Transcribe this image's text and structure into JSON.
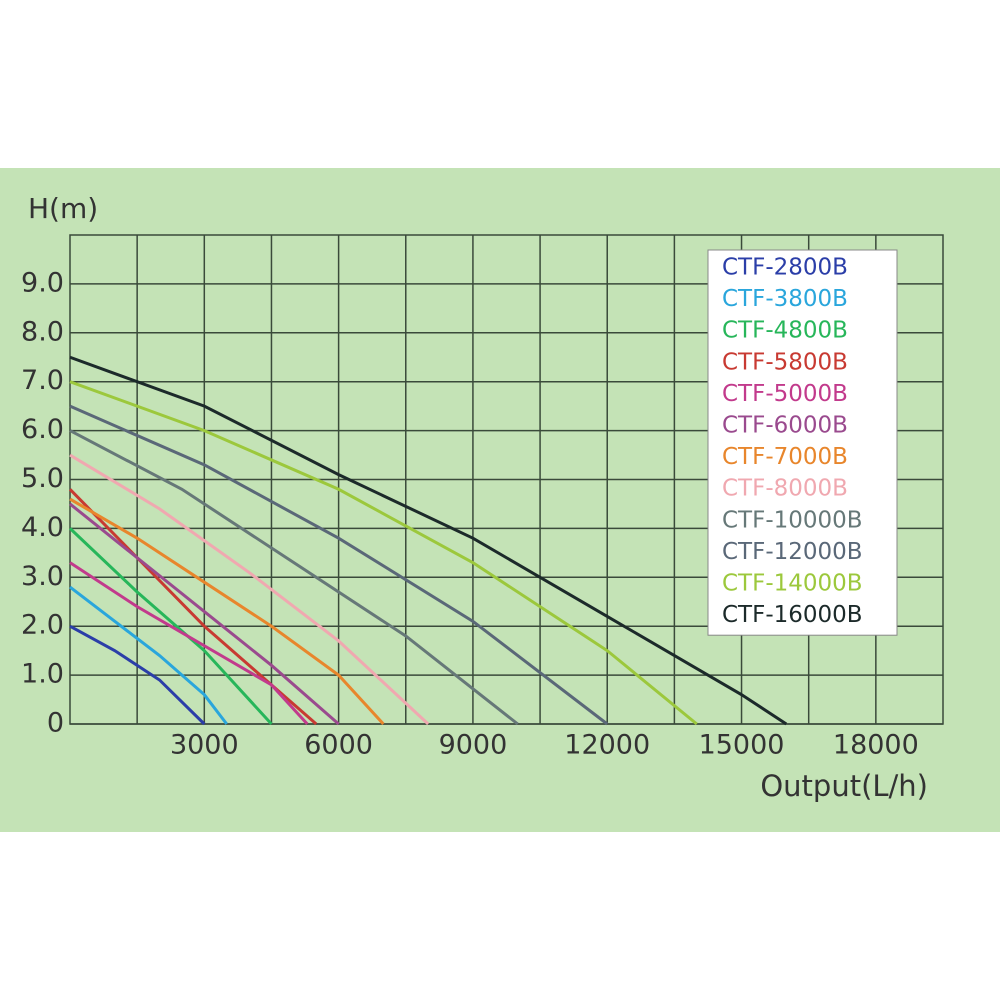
{
  "chart_data": {
    "type": "line",
    "ylabel": "H(m)",
    "xlabel": "Output(L/h)",
    "xlim": [
      0,
      19500
    ],
    "ylim": [
      0,
      10
    ],
    "xticks": [
      3000,
      6000,
      9000,
      12000,
      15000,
      18000
    ],
    "yticks": [
      0,
      {
        "value": 1,
        "label": "1.0"
      },
      {
        "value": 2,
        "label": "2.0"
      },
      {
        "value": 3,
        "label": "3.0"
      },
      {
        "value": 4,
        "label": "4.0"
      },
      {
        "value": 5,
        "label": "5.0"
      },
      {
        "value": 6,
        "label": "6.0"
      },
      {
        "value": 7,
        "label": "7.0"
      },
      {
        "value": 8,
        "label": "8.0"
      },
      {
        "value": 9,
        "label": "9.0"
      }
    ],
    "grid": true,
    "legend": "upper right",
    "series": [
      {
        "name": "CTF-2800B",
        "color": "#2b3ea8",
        "x": [
          0,
          1000,
          2000,
          3000
        ],
        "values": [
          2.0,
          1.5,
          0.9,
          0
        ]
      },
      {
        "name": "CTF-3800B",
        "color": "#2aa6dc",
        "x": [
          0,
          1000,
          2000,
          3000,
          3500
        ],
        "values": [
          2.8,
          2.1,
          1.4,
          0.6,
          0
        ]
      },
      {
        "name": "CTF-4800B",
        "color": "#27b65a",
        "x": [
          0,
          1500,
          3000,
          4500
        ],
        "values": [
          4.0,
          2.7,
          1.5,
          0
        ]
      },
      {
        "name": "CTF-5800B",
        "color": "#c83a32",
        "x": [
          0,
          1500,
          3000,
          4500,
          5500
        ],
        "values": [
          4.8,
          3.4,
          2.0,
          0.8,
          0
        ]
      },
      {
        "name": "CTF-5000B",
        "color": "#c23a8c",
        "x": [
          0,
          1500,
          3000,
          4500,
          5300
        ],
        "values": [
          3.3,
          2.4,
          1.6,
          0.8,
          0
        ]
      },
      {
        "name": "CTF-6000B",
        "color": "#9a4a8e",
        "x": [
          0,
          1500,
          3000,
          4500,
          6000
        ],
        "values": [
          4.5,
          3.4,
          2.3,
          1.2,
          0
        ]
      },
      {
        "name": "CTF-7000B",
        "color": "#e8862c",
        "x": [
          0,
          1500,
          3000,
          4500,
          6000,
          7000
        ],
        "values": [
          4.6,
          3.8,
          2.9,
          2.0,
          1.0,
          0
        ]
      },
      {
        "name": "CTF-8000B",
        "color": "#f0a8b0",
        "x": [
          0,
          2000,
          4000,
          6000,
          8000
        ],
        "values": [
          5.5,
          4.4,
          3.1,
          1.7,
          0
        ]
      },
      {
        "name": "CTF-10000B",
        "color": "#667878",
        "x": [
          0,
          2500,
          5000,
          7500,
          10000
        ],
        "values": [
          6.0,
          4.8,
          3.3,
          1.8,
          0
        ]
      },
      {
        "name": "CTF-12000B",
        "color": "#5a6878",
        "x": [
          0,
          3000,
          6000,
          9000,
          12000
        ],
        "values": [
          6.5,
          5.3,
          3.8,
          2.1,
          0
        ]
      },
      {
        "name": "CTF-14000B",
        "color": "#9cc83c",
        "x": [
          0,
          3000,
          6000,
          9000,
          12000,
          14000
        ],
        "values": [
          7.0,
          6.0,
          4.8,
          3.3,
          1.5,
          0
        ]
      },
      {
        "name": "CTF-16000B",
        "color": "#1c2a2a",
        "x": [
          0,
          3000,
          6000,
          9000,
          12000,
          15000,
          16000
        ],
        "values": [
          7.5,
          6.5,
          5.1,
          3.8,
          2.2,
          0.6,
          0
        ]
      }
    ]
  }
}
